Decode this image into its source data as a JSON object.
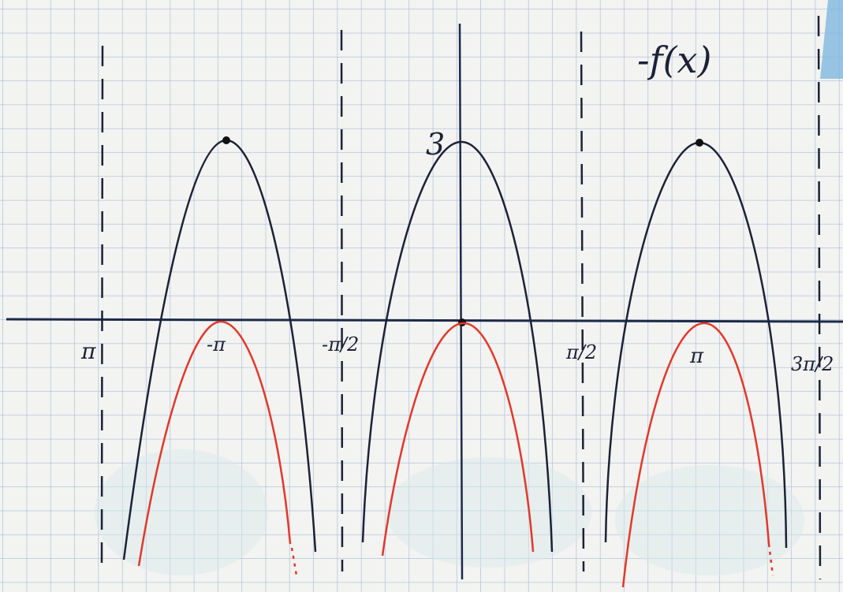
{
  "title": "-f(x)",
  "y_axis_label": "3",
  "x_labels": [
    "π",
    "-π",
    "-π/2",
    "π/2",
    "π",
    "3π/2"
  ]
}
